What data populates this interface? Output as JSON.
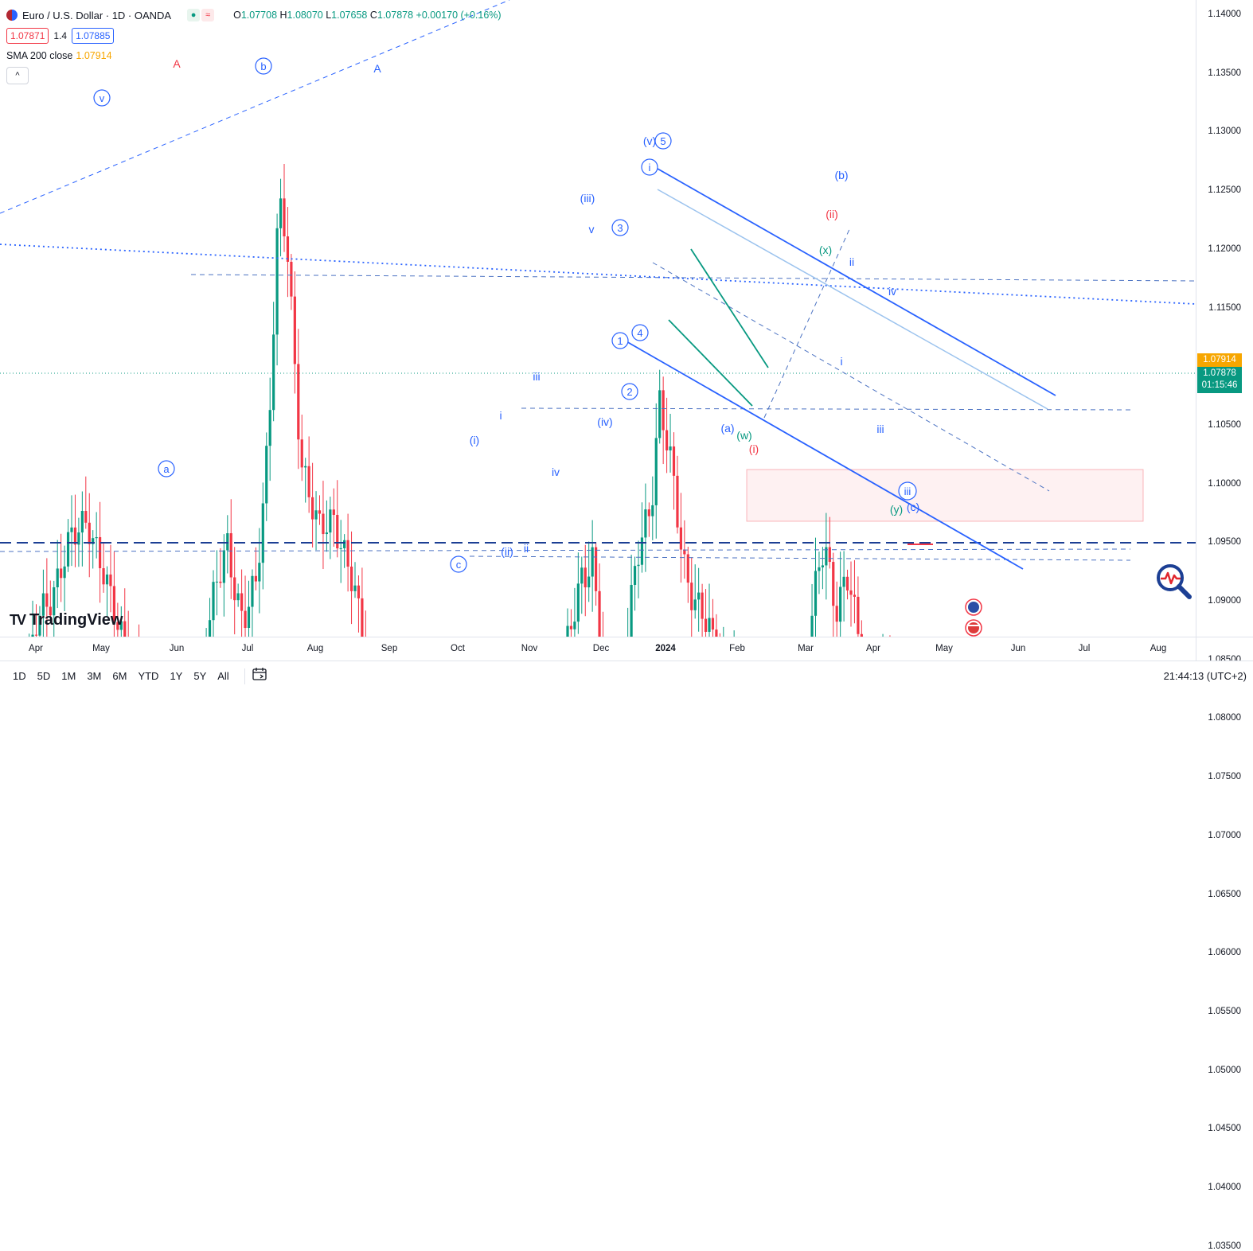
{
  "header": {
    "symbol_title": "Euro / U.S. Dollar · 1D · OANDA",
    "ohlc": [
      {
        "k": "O",
        "v": "1.07708"
      },
      {
        "k": "H",
        "v": "1.08070"
      },
      {
        "k": "L",
        "v": "1.07658"
      },
      {
        "k": "C",
        "v": "1.07878"
      }
    ],
    "change": "+0.00170 (+0.16%)",
    "bid": "1.07871",
    "spread": "1.4",
    "ask": "1.07885",
    "indicator_label": "SMA 200 close",
    "indicator_value": "1.07914",
    "collapse_glyph": "^"
  },
  "colors": {
    "up": "#089981",
    "down": "#f23645",
    "sma": "#f7a600",
    "wave_blue": "#2962ff",
    "wave_red": "#f23645",
    "wave_green": "#089981",
    "channel": "#2962ff",
    "channel_light": "#9cc3ee"
  },
  "price_axis": {
    "ticks": [
      "1.14000",
      "1.13500",
      "1.13000",
      "1.12500",
      "1.12000",
      "1.11500",
      "1.11000",
      "1.10500",
      "1.10000",
      "1.09500",
      "1.09000",
      "1.08500",
      "1.08000",
      "1.07500",
      "1.07000",
      "1.06500",
      "1.06000",
      "1.05500",
      "1.05000",
      "1.04500",
      "1.04000",
      "1.03500"
    ],
    "sma_badge": "1.07914",
    "price_badge": "1.07878",
    "countdown": "01:15:46"
  },
  "time_axis": {
    "ticks": [
      {
        "label": "Apr",
        "bold": false
      },
      {
        "label": "May",
        "bold": false
      },
      {
        "label": "Jun",
        "bold": false
      },
      {
        "label": "Jul",
        "bold": false
      },
      {
        "label": "Aug",
        "bold": false
      },
      {
        "label": "Sep",
        "bold": false
      },
      {
        "label": "Oct",
        "bold": false
      },
      {
        "label": "Nov",
        "bold": false
      },
      {
        "label": "Dec",
        "bold": false
      },
      {
        "label": "2024",
        "bold": true
      },
      {
        "label": "Feb",
        "bold": false
      },
      {
        "label": "Mar",
        "bold": false
      },
      {
        "label": "Apr",
        "bold": false
      },
      {
        "label": "May",
        "bold": false
      },
      {
        "label": "Jun",
        "bold": false
      },
      {
        "label": "Jul",
        "bold": false
      },
      {
        "label": "Aug",
        "bold": false
      }
    ]
  },
  "bottom_bar": {
    "timeframes": [
      "1D",
      "5D",
      "1M",
      "3M",
      "6M",
      "YTD",
      "1Y",
      "5Y",
      "All"
    ],
    "clock": "21:44:13 (UTC+2)"
  },
  "branding": {
    "logo_text": "TradingView",
    "logo_mark": "TV"
  },
  "wave_labels": [
    {
      "t": "A",
      "c": "red",
      "circle": false
    },
    {
      "t": "b",
      "c": "blue",
      "circle": true
    },
    {
      "t": "A",
      "c": "blue",
      "circle": false
    },
    {
      "t": "v",
      "c": "blue",
      "circle": true
    },
    {
      "t": "a",
      "c": "blue",
      "circle": true
    },
    {
      "t": "c",
      "c": "blue",
      "circle": true
    },
    {
      "t": "iii",
      "c": "blue",
      "circle": false
    },
    {
      "t": "i",
      "c": "blue",
      "circle": false
    },
    {
      "t": "(i)",
      "c": "blue",
      "circle": false
    },
    {
      "t": "iv",
      "c": "blue",
      "circle": false
    },
    {
      "t": "(ii)",
      "c": "blue",
      "circle": false
    },
    {
      "t": "ii",
      "c": "blue",
      "circle": false
    },
    {
      "t": "(iii)",
      "c": "blue",
      "circle": false
    },
    {
      "t": "v",
      "c": "blue",
      "circle": false
    },
    {
      "t": "(iv)",
      "c": "blue",
      "circle": false
    },
    {
      "t": "(v)",
      "c": "blue",
      "circle": false
    },
    {
      "t": "5",
      "c": "blue",
      "circle": true
    },
    {
      "t": "3",
      "c": "blue",
      "circle": true
    },
    {
      "t": "4",
      "c": "blue",
      "circle": true
    },
    {
      "t": "1",
      "c": "blue",
      "circle": true
    },
    {
      "t": "2",
      "c": "blue",
      "circle": true
    },
    {
      "t": "i",
      "c": "blue",
      "circle": true
    },
    {
      "t": "(a)",
      "c": "blue",
      "circle": false
    },
    {
      "t": "(w)",
      "c": "green",
      "circle": false
    },
    {
      "t": "(i)",
      "c": "red",
      "circle": false
    },
    {
      "t": "(b)",
      "c": "blue",
      "circle": false
    },
    {
      "t": "(ii)",
      "c": "red",
      "circle": false
    },
    {
      "t": "(x)",
      "c": "green",
      "circle": false
    },
    {
      "t": "ii",
      "c": "blue",
      "circle": false
    },
    {
      "t": "iv",
      "c": "blue",
      "circle": false
    },
    {
      "t": "i",
      "c": "blue",
      "circle": false
    },
    {
      "t": "iii",
      "c": "blue",
      "circle": false
    },
    {
      "t": "iii",
      "c": "blue",
      "circle": true
    },
    {
      "t": "(y)",
      "c": "green",
      "circle": false
    },
    {
      "t": "(c)",
      "c": "blue",
      "circle": false
    }
  ]
}
